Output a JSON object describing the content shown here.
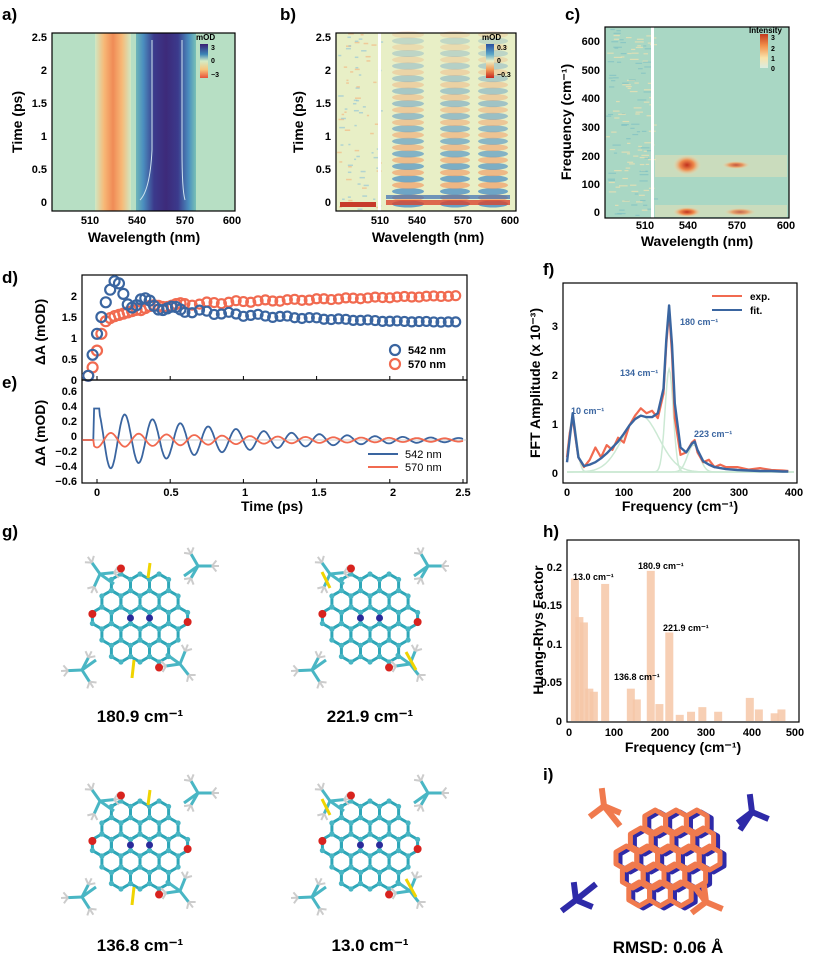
{
  "panels": {
    "a": {
      "label": "a)",
      "xlabel": "Wavelength (nm)",
      "ylabel": "Time (ps)",
      "xticks": [
        "510",
        "540",
        "570",
        "600"
      ],
      "yticks": [
        "0",
        "0.5",
        "1",
        "1.5",
        "2",
        "2.5"
      ],
      "colorbar": {
        "title": "mOD",
        "ticks": [
          "3",
          "0",
          "−3"
        ]
      }
    },
    "b": {
      "label": "b)",
      "xlabel": "Wavelength (nm)",
      "ylabel": "Time (ps)",
      "xticks": [
        "510",
        "540",
        "570",
        "600"
      ],
      "yticks": [
        "0",
        "0.5",
        "1",
        "1.5",
        "2",
        "2.5"
      ],
      "colorbar": {
        "title": "mOD",
        "ticks": [
          "0.3",
          "0",
          "−0.3"
        ]
      }
    },
    "c": {
      "label": "c)",
      "xlabel": "Wavelength (nm)",
      "ylabel": "Frequency (cm⁻¹)",
      "xticks": [
        "510",
        "540",
        "570",
        "600"
      ],
      "yticks": [
        "0",
        "100",
        "200",
        "300",
        "400",
        "500",
        "600"
      ],
      "colorbar": {
        "title": "Intensity",
        "ticks": [
          "3",
          "2",
          "1",
          "0"
        ]
      }
    },
    "d": {
      "label": "d)",
      "ylabel": "ΔA (mOD)",
      "yticks": [
        "0",
        "0.5",
        "1",
        "1.5",
        "2"
      ],
      "legend": [
        "542 nm",
        "570 nm"
      ]
    },
    "e": {
      "label": "e)",
      "xlabel": "Time (ps)",
      "ylabel": "ΔA (mOD)",
      "yticks": [
        "0.6",
        "0.4",
        "0.2",
        "0",
        "−0.2",
        "−0.4",
        "−0.6"
      ],
      "xticks": [
        "0",
        "0.5",
        "1",
        "1.5",
        "2",
        "2.5"
      ],
      "legend": [
        "542 nm",
        "570 nm"
      ]
    },
    "f": {
      "label": "f)",
      "xlabel": "Frequency (cm⁻¹)",
      "ylabel": "FFT Amplitude (x 10⁻³)",
      "xticks": [
        "0",
        "100",
        "200",
        "300",
        "400"
      ],
      "yticks": [
        "0",
        "1",
        "2",
        "3"
      ],
      "legend": [
        "exp.",
        "fit."
      ],
      "annotations": [
        "10 cm⁻¹",
        "134 cm⁻¹",
        "180 cm⁻¹",
        "223 cm⁻¹"
      ]
    },
    "g": {
      "label": "g)",
      "captions": [
        "180.9 cm⁻¹",
        "221.9 cm⁻¹",
        "136.8 cm⁻¹",
        "13.0 cm⁻¹"
      ]
    },
    "h": {
      "label": "h)",
      "xlabel": "Frequency (cm⁻¹)",
      "ylabel": "Huang-Rhys Factor",
      "xticks": [
        "0",
        "100",
        "200",
        "300",
        "400",
        "500"
      ],
      "yticks": [
        "0",
        "0.05",
        "0.1",
        "0.15",
        "0.2"
      ],
      "annotations": [
        "13.0 cm⁻¹",
        "180.9 cm⁻¹",
        "221.9 cm⁻¹",
        "136.8 cm⁻¹"
      ]
    },
    "i": {
      "label": "i)",
      "caption": "RMSD: 0.06 Å"
    }
  },
  "colors": {
    "blue": "#3a65a0",
    "red": "#f16a50",
    "light_green": "#cce9d4",
    "hr_bar": "#f6c7a7"
  },
  "chart_data": [
    {
      "type": "heatmap",
      "panel": "a",
      "xlabel": "Wavelength (nm)",
      "ylabel": "Time (ps)",
      "xlim": [
        480,
        600
      ],
      "ylim": [
        -0.1,
        2.6
      ],
      "bands": [
        {
          "center_nm": 522,
          "sign": "negative",
          "value_mOD": -3
        },
        {
          "center_nm": 556,
          "sign": "positive",
          "value_mOD": 3
        }
      ],
      "colorbar_range": [
        -3,
        3
      ]
    },
    {
      "type": "heatmap",
      "panel": "b",
      "xlabel": "Wavelength (nm)",
      "ylabel": "Time (ps)",
      "xlim": [
        480,
        600
      ],
      "ylim": [
        -0.1,
        2.6
      ],
      "colorbar_range": [
        -0.3,
        0.3
      ],
      "oscillation_period_ps": 0.19,
      "scatter_line_nm": 514
    },
    {
      "type": "heatmap",
      "panel": "c",
      "xlabel": "Wavelength (nm)",
      "ylabel": "Frequency (cm-1)",
      "xlim": [
        480,
        600
      ],
      "ylim": [
        0,
        660
      ],
      "colorbar_range": [
        0,
        3
      ],
      "peaks": [
        {
          "wavelength_nm": 542,
          "freq": 180,
          "intensity": 3
        },
        {
          "wavelength_nm": 572,
          "freq": 180,
          "intensity": 2
        },
        {
          "wavelength_nm": 542,
          "freq": 10,
          "intensity": 2.5
        },
        {
          "wavelength_nm": 575,
          "freq": 10,
          "intensity": 1.5
        }
      ]
    },
    {
      "type": "scatter",
      "panel": "d",
      "ylabel": "ΔA (mOD)",
      "xlim": [
        -0.1,
        2.5
      ],
      "ylim": [
        0,
        2.5
      ],
      "series": [
        {
          "name": "542 nm",
          "x": [
            -0.06,
            -0.03,
            0,
            0.03,
            0.06,
            0.09,
            0.12,
            0.15,
            0.18,
            0.21,
            0.25,
            0.3,
            0.35,
            0.4,
            0.5,
            0.6,
            0.8,
            1.0,
            1.3,
            1.6,
            2.0,
            2.4
          ],
          "y": [
            0.1,
            0.6,
            1.1,
            1.5,
            1.85,
            2.15,
            2.35,
            2.3,
            2.05,
            1.8,
            1.7,
            1.9,
            1.85,
            1.75,
            1.7,
            1.65,
            1.6,
            1.55,
            1.5,
            1.45,
            1.4,
            1.38
          ]
        },
        {
          "name": "570 nm",
          "x": [
            -0.06,
            -0.03,
            0,
            0.03,
            0.06,
            0.1,
            0.15,
            0.2,
            0.3,
            0.4,
            0.5,
            0.7,
            1.0,
            1.3,
            1.6,
            2.0,
            2.4
          ],
          "y": [
            0.1,
            0.3,
            0.7,
            1.1,
            1.4,
            1.5,
            1.55,
            1.6,
            1.7,
            1.75,
            1.78,
            1.82,
            1.87,
            1.9,
            1.93,
            1.97,
            2.0
          ]
        }
      ]
    },
    {
      "type": "line",
      "panel": "e",
      "xlabel": "Time (ps)",
      "ylabel": "ΔA (mOD)",
      "xlim": [
        -0.1,
        2.5
      ],
      "ylim": [
        -0.7,
        0.65
      ],
      "series": [
        {
          "name": "542 nm",
          "amplitude": 0.42,
          "period_ps": 0.19,
          "decay_ps": 0.9
        },
        {
          "name": "570 nm",
          "amplitude": 0.1,
          "period_ps": 0.19,
          "decay_ps": 1.6,
          "phase": 3.14
        }
      ]
    },
    {
      "type": "line",
      "panel": "f",
      "xlabel": "Frequency (cm-1)",
      "ylabel": "FFT Amplitude (x 10-3)",
      "xlim": [
        0,
        400
      ],
      "ylim": [
        -0.1,
        3.6
      ],
      "series": [
        {
          "name": "exp.",
          "x": [
            0,
            5,
            10,
            15,
            20,
            30,
            40,
            50,
            60,
            70,
            80,
            90,
            100,
            110,
            120,
            130,
            140,
            150,
            160,
            170,
            175,
            180,
            185,
            190,
            200,
            210,
            220,
            225,
            230,
            240,
            250,
            260,
            270,
            280,
            300,
            320,
            340,
            360,
            380,
            390
          ],
          "y": [
            0.3,
            0.8,
            1.1,
            0.7,
            0.3,
            0.1,
            0.25,
            0.5,
            0.3,
            0.55,
            0.45,
            0.7,
            0.6,
            0.95,
            1.15,
            1.3,
            1.2,
            1.25,
            1.1,
            1.6,
            2.6,
            3.3,
            2.4,
            1.1,
            0.35,
            0.4,
            0.6,
            0.65,
            0.4,
            0.2,
            0.25,
            0.1,
            0.15,
            0.1,
            0.1,
            0.05,
            0.08,
            0.04,
            0.03,
            0.02
          ]
        },
        {
          "name": "fit.",
          "x": [
            0,
            5,
            10,
            15,
            20,
            30,
            40,
            50,
            60,
            70,
            80,
            90,
            100,
            110,
            120,
            130,
            140,
            150,
            160,
            170,
            175,
            180,
            185,
            190,
            200,
            210,
            220,
            225,
            230,
            240,
            250,
            260,
            270,
            280,
            300,
            320,
            340,
            360,
            380,
            390
          ],
          "y": [
            0.2,
            0.7,
            1.2,
            0.75,
            0.3,
            0.12,
            0.15,
            0.2,
            0.28,
            0.38,
            0.5,
            0.62,
            0.78,
            0.95,
            1.08,
            1.15,
            1.12,
            1.12,
            1.2,
            1.7,
            2.7,
            3.4,
            2.6,
            1.4,
            0.5,
            0.4,
            0.58,
            0.62,
            0.45,
            0.22,
            0.15,
            0.1,
            0.08,
            0.06,
            0.04,
            0.03,
            0.02,
            0.02,
            0.01,
            0.01
          ]
        }
      ]
    },
    {
      "type": "bar",
      "panel": "h",
      "xlabel": "Frequency (cm-1)",
      "ylabel": "Huang-Rhys Factor",
      "xlim": [
        0,
        500
      ],
      "ylim": [
        0,
        0.235
      ],
      "x": [
        13,
        23,
        33,
        45,
        55,
        80,
        136.8,
        150,
        180.9,
        200,
        221.9,
        245,
        270,
        295,
        330,
        400,
        420,
        455,
        470
      ],
      "values": [
        0.185,
        0.135,
        0.128,
        0.042,
        0.038,
        0.178,
        0.042,
        0.028,
        0.195,
        0.022,
        0.115,
        0.008,
        0.012,
        0.018,
        0.012,
        0.03,
        0.015,
        0.01,
        0.015
      ]
    }
  ]
}
